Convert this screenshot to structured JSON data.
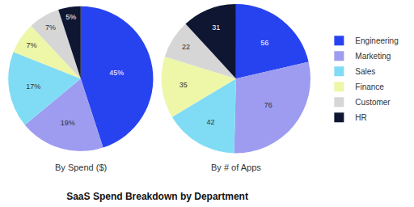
{
  "title": "SaaS Spend Breakdown by Department",
  "chart_data": [
    {
      "type": "pie",
      "title": "By Spend ($)",
      "categories": [
        "Engineering",
        "Marketing",
        "Sales",
        "Finance",
        "Customer",
        "HR"
      ],
      "values": [
        45,
        19,
        17,
        7,
        7,
        5
      ],
      "value_labels": [
        "45%",
        "19%",
        "17%",
        "7%",
        "7%",
        "5%"
      ],
      "colors": [
        "#2743f0",
        "#9d9cf0",
        "#80dcf5",
        "#eef6a8",
        "#d6d6d6",
        "#0e1631"
      ],
      "data_labels": true,
      "legend": "right"
    },
    {
      "type": "pie",
      "title": "By # of Apps",
      "categories": [
        "Engineering",
        "Marketing",
        "Sales",
        "Finance",
        "Customer",
        "HR"
      ],
      "values": [
        56,
        76,
        42,
        35,
        22,
        31
      ],
      "colors": [
        "#2743f0",
        "#9d9cf0",
        "#80dcf5",
        "#eef6a8",
        "#d6d6d6",
        "#0e1631"
      ],
      "data_labels": true,
      "legend": "right"
    }
  ]
}
